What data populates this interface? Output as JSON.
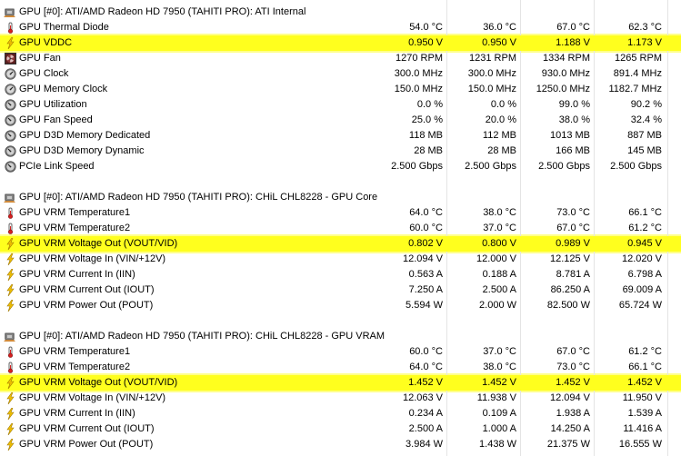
{
  "sections": [
    {
      "header": "GPU [#0]: ATI/AMD Radeon HD 7950 (TAHITI PRO): ATI Internal",
      "rows": [
        {
          "icon": "thermometer-icon",
          "label": "GPU Thermal Diode",
          "v": [
            "54.0 °C",
            "36.0 °C",
            "67.0 °C",
            "62.3 °C"
          ],
          "hl": false
        },
        {
          "icon": "voltage-bolt-icon",
          "label": "GPU VDDC",
          "v": [
            "0.950 V",
            "0.950 V",
            "1.188 V",
            "1.173 V"
          ],
          "hl": true
        },
        {
          "icon": "fan-icon",
          "label": "GPU Fan",
          "v": [
            "1270 RPM",
            "1231 RPM",
            "1334 RPM",
            "1265 RPM"
          ],
          "hl": false
        },
        {
          "icon": "clock-gauge-icon",
          "label": "GPU Clock",
          "v": [
            "300.0 MHz",
            "300.0 MHz",
            "930.0 MHz",
            "891.4 MHz"
          ],
          "hl": false
        },
        {
          "icon": "clock-gauge-icon",
          "label": "GPU Memory Clock",
          "v": [
            "150.0 MHz",
            "150.0 MHz",
            "1250.0 MHz",
            "1182.7 MHz"
          ],
          "hl": false
        },
        {
          "icon": "gauge-icon",
          "label": "GPU Utilization",
          "v": [
            "0.0 %",
            "0.0 %",
            "99.0 %",
            "90.2 %"
          ],
          "hl": false
        },
        {
          "icon": "gauge-icon",
          "label": "GPU Fan Speed",
          "v": [
            "25.0 %",
            "20.0 %",
            "38.0 %",
            "32.4 %"
          ],
          "hl": false
        },
        {
          "icon": "gauge-icon",
          "label": "GPU D3D Memory Dedicated",
          "v": [
            "118 MB",
            "112 MB",
            "1013 MB",
            "887 MB"
          ],
          "hl": false
        },
        {
          "icon": "gauge-icon",
          "label": "GPU D3D Memory Dynamic",
          "v": [
            "28 MB",
            "28 MB",
            "166 MB",
            "145 MB"
          ],
          "hl": false
        },
        {
          "icon": "gauge-icon",
          "label": "PCIe Link Speed",
          "v": [
            "2.500 Gbps",
            "2.500 Gbps",
            "2.500 Gbps",
            "2.500 Gbps"
          ],
          "hl": false
        }
      ]
    },
    {
      "header": "GPU [#0]: ATI/AMD Radeon HD 7950 (TAHITI PRO): CHiL CHL8228 - GPU Core",
      "rows": [
        {
          "icon": "thermometer-icon",
          "label": "GPU VRM Temperature1",
          "v": [
            "64.0 °C",
            "38.0 °C",
            "73.0 °C",
            "66.1 °C"
          ],
          "hl": false
        },
        {
          "icon": "thermometer-icon",
          "label": "GPU VRM Temperature2",
          "v": [
            "60.0 °C",
            "37.0 °C",
            "67.0 °C",
            "61.2 °C"
          ],
          "hl": false
        },
        {
          "icon": "voltage-bolt-icon",
          "label": "GPU VRM Voltage Out (VOUT/VID)",
          "v": [
            "0.802 V",
            "0.800 V",
            "0.989 V",
            "0.945 V"
          ],
          "hl": true
        },
        {
          "icon": "voltage-bolt-icon",
          "label": "GPU VRM Voltage In (VIN/+12V)",
          "v": [
            "12.094 V",
            "12.000 V",
            "12.125 V",
            "12.020 V"
          ],
          "hl": false
        },
        {
          "icon": "voltage-bolt-icon",
          "label": "GPU VRM Current In (IIN)",
          "v": [
            "0.563 A",
            "0.188 A",
            "8.781 A",
            "6.798 A"
          ],
          "hl": false
        },
        {
          "icon": "voltage-bolt-icon",
          "label": "GPU VRM Current Out (IOUT)",
          "v": [
            "7.250 A",
            "2.500 A",
            "86.250 A",
            "69.009 A"
          ],
          "hl": false
        },
        {
          "icon": "voltage-bolt-icon",
          "label": "GPU VRM Power Out (POUT)",
          "v": [
            "5.594 W",
            "2.000 W",
            "82.500 W",
            "65.724 W"
          ],
          "hl": false
        }
      ]
    },
    {
      "header": "GPU [#0]: ATI/AMD Radeon HD 7950 (TAHITI PRO): CHiL CHL8228 - GPU VRAM",
      "rows": [
        {
          "icon": "thermometer-icon",
          "label": "GPU VRM Temperature1",
          "v": [
            "60.0 °C",
            "37.0 °C",
            "67.0 °C",
            "61.2 °C"
          ],
          "hl": false
        },
        {
          "icon": "thermometer-icon",
          "label": "GPU VRM Temperature2",
          "v": [
            "64.0 °C",
            "38.0 °C",
            "73.0 °C",
            "66.1 °C"
          ],
          "hl": false
        },
        {
          "icon": "voltage-bolt-icon",
          "label": "GPU VRM Voltage Out (VOUT/VID)",
          "v": [
            "1.452 V",
            "1.452 V",
            "1.452 V",
            "1.452 V"
          ],
          "hl": true
        },
        {
          "icon": "voltage-bolt-icon",
          "label": "GPU VRM Voltage In (VIN/+12V)",
          "v": [
            "12.063 V",
            "11.938 V",
            "12.094 V",
            "11.950 V"
          ],
          "hl": false
        },
        {
          "icon": "voltage-bolt-icon",
          "label": "GPU VRM Current In (IIN)",
          "v": [
            "0.234 A",
            "0.109 A",
            "1.938 A",
            "1.539 A"
          ],
          "hl": false
        },
        {
          "icon": "voltage-bolt-icon",
          "label": "GPU VRM Current Out (IOUT)",
          "v": [
            "2.500 A",
            "1.000 A",
            "14.250 A",
            "11.416 A"
          ],
          "hl": false
        },
        {
          "icon": "voltage-bolt-icon",
          "label": "GPU VRM Power Out (POUT)",
          "v": [
            "3.984 W",
            "1.438 W",
            "21.375 W",
            "16.555 W"
          ],
          "hl": false
        }
      ]
    }
  ]
}
